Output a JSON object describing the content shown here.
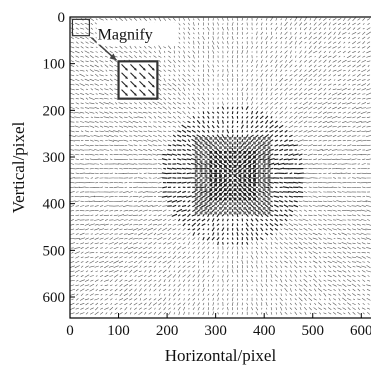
{
  "chart_data": {
    "type": "heatmap",
    "title": "",
    "xlabel": "Horizontal/pixel",
    "ylabel": "Vertical/pixel",
    "xlim": [
      0,
      620
    ],
    "ylim": [
      0,
      645
    ],
    "y_inverted": true,
    "xticks": [
      0,
      100,
      200,
      300,
      400,
      500,
      600
    ],
    "yticks": [
      0,
      100,
      200,
      300,
      400,
      500,
      600
    ],
    "xtick_labels": [
      "0",
      "100",
      "200",
      "300",
      "400",
      "500",
      "600"
    ],
    "ytick_labels": [
      "0",
      "100",
      "200",
      "300",
      "400",
      "500",
      "600"
    ],
    "field": "vector field (arrows)",
    "grid_spacing": 10,
    "dense_region": {
      "x": [
        260,
        410
      ],
      "y": [
        260,
        420
      ]
    },
    "annotation": {
      "text": "Magnify",
      "source_box": {
        "x": [
          5,
          40
        ],
        "y": [
          5,
          40
        ]
      },
      "inset_box": {
        "x": [
          100,
          180
        ],
        "y": [
          95,
          175
        ]
      }
    },
    "grid": false,
    "legend": "none",
    "colors": {
      "arrows": "#222222",
      "frame": "#000000",
      "background": "#ffffff"
    }
  }
}
